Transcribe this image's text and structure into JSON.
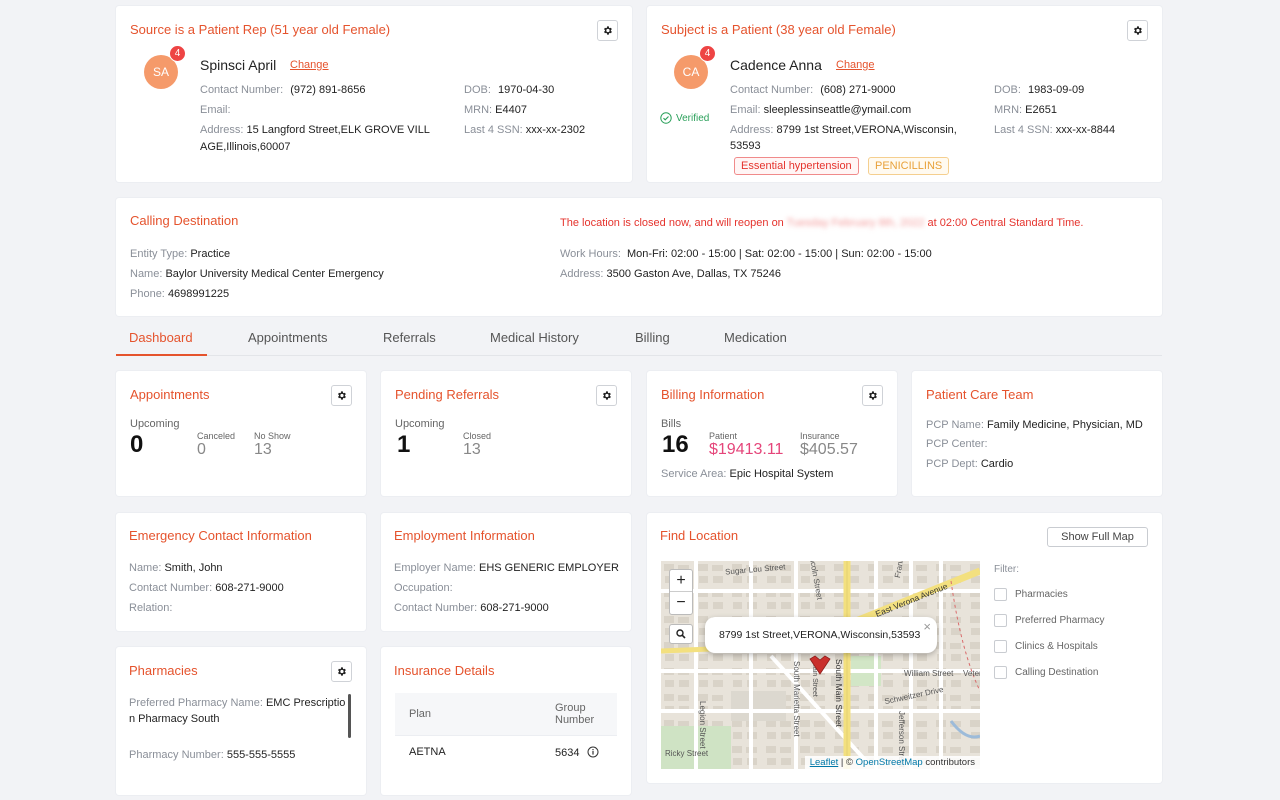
{
  "source_card": {
    "title": "Source is a Patient Rep (51 year old Female)",
    "initials": "SA",
    "badge_count": "4",
    "name": "Spinsci April",
    "change_label": "Change",
    "contact_label": "Contact Number:",
    "contact_value": "(972) 891-8656",
    "email_label": "Email:",
    "email_value": "",
    "address_label": "Address:",
    "address_line1": "15 Langford Street,ELK GROVE VILL",
    "address_line2": "AGE,Illinois,60007",
    "dob_label": "DOB:",
    "dob_value": "1970-04-30",
    "mrn_label": "MRN:",
    "mrn_value": "E4407",
    "ssn_label": "Last 4 SSN:",
    "ssn_value": "xxx-xx-2302"
  },
  "subject_card": {
    "title": "Subject is a Patient (38 year old Female)",
    "initials": "CA",
    "badge_count": "4",
    "name": "Cadence Anna",
    "change_label": "Change",
    "verified_label": "Verified",
    "contact_label": "Contact Number:",
    "contact_value": "(608) 271-9000",
    "email_label": "Email:",
    "email_value": "sleeplessinseattle@ymail.com",
    "address_label": "Address:",
    "address_line1": "8799 1st Street,VERONA,Wisconsin,",
    "address_line2": "53593",
    "dob_label": "DOB:",
    "dob_value": "1983-09-09",
    "mrn_label": "MRN:",
    "mrn_value": "E2651",
    "ssn_label": "Last 4 SSN:",
    "ssn_value": "xxx-xx-8844",
    "tags": [
      "Essential hypertension",
      "PENICILLINS"
    ]
  },
  "calling_destination": {
    "title": "Calling Destination",
    "closed_prefix": "The location is closed now, and will reopen on",
    "closed_redacted": "Tuesday February 8th, 2022",
    "closed_suffix": "at 02:00 Central Standard Time.",
    "entity_label": "Entity Type:",
    "entity_value": "Practice",
    "name_label": "Name:",
    "name_value": "Baylor University Medical Center Emergency",
    "phone_label": "Phone:",
    "phone_value": "4698991225",
    "hours_label": "Work Hours:",
    "hours_value": "Mon-Fri: 02:00 - 15:00 | Sat: 02:00 - 15:00 | Sun: 02:00 - 15:00",
    "address_label": "Address:",
    "address_value": "3500 Gaston Ave, Dallas, TX 75246"
  },
  "tabs": [
    "Dashboard",
    "Appointments",
    "Referrals",
    "Medical History",
    "Billing",
    "Medication"
  ],
  "appointments": {
    "title": "Appointments",
    "upcoming_label": "Upcoming",
    "upcoming_value": "0",
    "canceled_label": "Canceled",
    "canceled_value": "0",
    "noshow_label": "No Show",
    "noshow_value": "13"
  },
  "referrals": {
    "title": "Pending Referrals",
    "upcoming_label": "Upcoming",
    "upcoming_value": "1",
    "closed_label": "Closed",
    "closed_value": "13"
  },
  "billing": {
    "title": "Billing Information",
    "bills_label": "Bills",
    "bills_value": "16",
    "patient_label": "Patient",
    "patient_value": "$19413.11",
    "insurance_label": "Insurance",
    "insurance_value": "$405.57",
    "service_label": "Service Area:",
    "service_value": "Epic Hospital System"
  },
  "care_team": {
    "title": "Patient Care Team",
    "pcp_name_label": "PCP Name:",
    "pcp_name_value": "Family Medicine, Physician, MD",
    "pcp_center_label": "PCP Center:",
    "pcp_center_value": "",
    "pcp_dept_label": "PCP Dept:",
    "pcp_dept_value": "Cardio"
  },
  "emergency": {
    "title": "Emergency Contact Information",
    "name_label": "Name:",
    "name_value": "Smith, John",
    "contact_label": "Contact Number:",
    "contact_value": "608-271-9000",
    "relation_label": "Relation:",
    "relation_value": ""
  },
  "employment": {
    "title": "Employment Information",
    "employer_label": "Employer Name:",
    "employer_value": "EHS GENERIC EMPLOYER",
    "occupation_label": "Occupation:",
    "occupation_value": "",
    "contact_label": "Contact Number:",
    "contact_value": "608-271-9000"
  },
  "pharmacies": {
    "title": "Pharmacies",
    "preferred_label": "Preferred Pharmacy Name:",
    "preferred_value_1": "EMC Prescriptio",
    "preferred_value_2": "n Pharmacy South",
    "number_label": "Pharmacy Number:",
    "number_value": "555-555-5555"
  },
  "insurance": {
    "title": "Insurance Details",
    "col_plan": "Plan",
    "col_group_1": "Group",
    "col_group_2": "Number",
    "plan": "AETNA",
    "group": "5634"
  },
  "find_location": {
    "title": "Find Location",
    "show_full_map": "Show Full Map",
    "zoom_in": "+",
    "zoom_out": "−",
    "popup_text": "8799 1st Street,VERONA,Wisconsin,53593",
    "popup_close": "×",
    "attribution_leaflet": "Leaflet",
    "attribution_sep": " | © ",
    "attribution_osm": "OpenStreetMap",
    "attribution_tail": " contributors",
    "filter_label": "Filter:",
    "filters": [
      "Pharmacies",
      "Preferred Pharmacy",
      "Clinics & Hospitals",
      "Calling Destination"
    ],
    "street_labels": [
      "Sugar Lou Street",
      "Lincoln Street",
      "Franklin Street",
      "East Verona Avenue",
      "South Main Street",
      "Schweitzer Drive",
      "William Street",
      "Jefferson Street",
      "Legion Street",
      "South Marietta Street",
      "Ricky Street",
      "Main Street",
      "Veter"
    ]
  },
  "colors": {
    "accent": "#e5532d",
    "alert": "#e5332d",
    "badge": "#ee4444",
    "avatar": "#f59a6a",
    "verified": "#2aa05a",
    "patient_amount": "#e5457a"
  }
}
